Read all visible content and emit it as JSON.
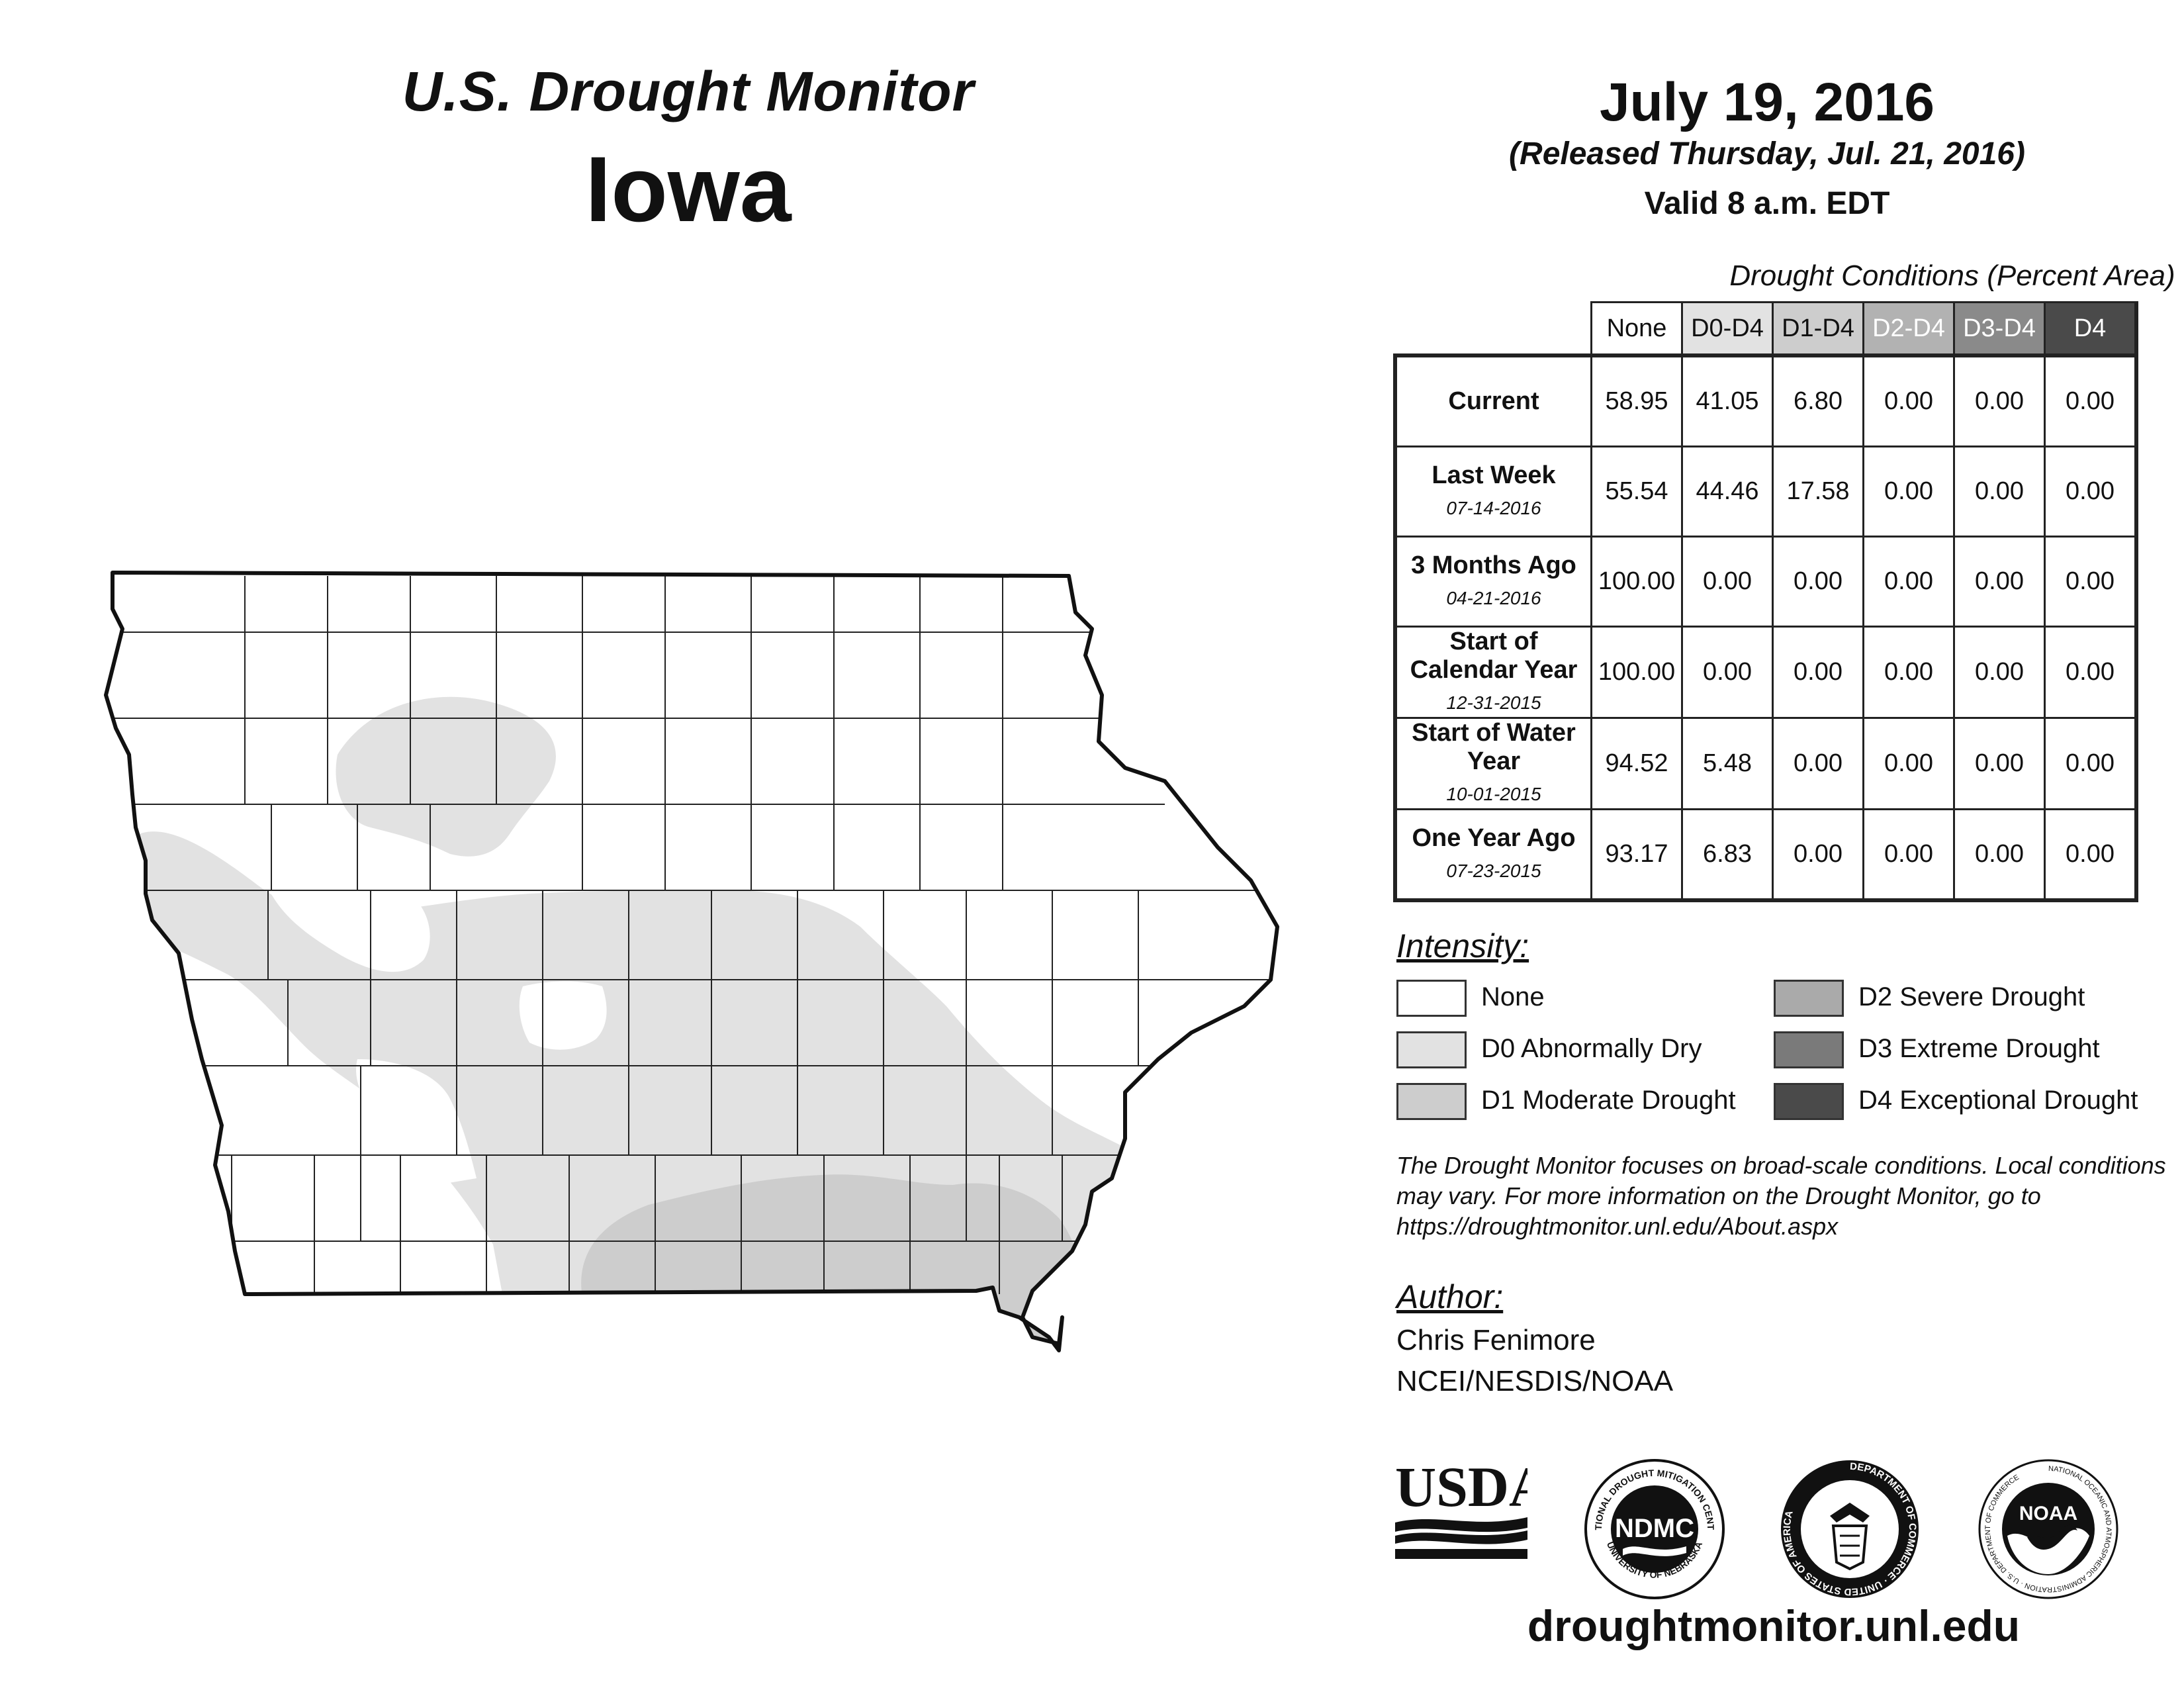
{
  "header": {
    "title": "U.S. Drought Monitor",
    "state": "Iowa",
    "date": "July 19, 2016",
    "released": "(Released Thursday, Jul. 21, 2016)",
    "valid": "Valid 8 a.m. EDT"
  },
  "table": {
    "caption": "Drought Conditions (Percent Area)",
    "columns": [
      "None",
      "D0-D4",
      "D1-D4",
      "D2-D4",
      "D3-D4",
      "D4"
    ],
    "column_colors": [
      "#ffffff",
      "#e2e2e2",
      "#cdcdcd",
      "#b2b2b2",
      "#8a8a8a",
      "#4a4a4a"
    ],
    "rows": [
      {
        "label": "Current",
        "date": "",
        "values": [
          "58.95",
          "41.05",
          "6.80",
          "0.00",
          "0.00",
          "0.00"
        ]
      },
      {
        "label": "Last Week",
        "date": "07-14-2016",
        "values": [
          "55.54",
          "44.46",
          "17.58",
          "0.00",
          "0.00",
          "0.00"
        ]
      },
      {
        "label": "3 Months Ago",
        "date": "04-21-2016",
        "values": [
          "100.00",
          "0.00",
          "0.00",
          "0.00",
          "0.00",
          "0.00"
        ]
      },
      {
        "label": "Start of Calendar Year",
        "date": "12-31-2015",
        "values": [
          "100.00",
          "0.00",
          "0.00",
          "0.00",
          "0.00",
          "0.00"
        ]
      },
      {
        "label": "Start of Water Year",
        "date": "10-01-2015",
        "values": [
          "94.52",
          "5.48",
          "0.00",
          "0.00",
          "0.00",
          "0.00"
        ]
      },
      {
        "label": "One Year Ago",
        "date": "07-23-2015",
        "values": [
          "93.17",
          "6.83",
          "0.00",
          "0.00",
          "0.00",
          "0.00"
        ]
      }
    ]
  },
  "legend": {
    "title": "Intensity:",
    "items": [
      {
        "label": "None",
        "color": "#ffffff"
      },
      {
        "label": "D0 Abnormally Dry",
        "color": "#e2e2e2"
      },
      {
        "label": "D1 Moderate Drought",
        "color": "#cdcdcd"
      },
      {
        "label": "D2 Severe Drought",
        "color": "#aaaaaa"
      },
      {
        "label": "D3 Extreme Drought",
        "color": "#7a7a7a"
      },
      {
        "label": "D4 Exceptional Drought",
        "color": "#4a4a4a"
      }
    ]
  },
  "note": "The Drought Monitor focuses on broad-scale conditions. Local conditions may vary. For more information on the Drought Monitor, go to https://droughtmonitor.unl.edu/About.aspx",
  "author": {
    "title": "Author:",
    "name": "Chris Fenimore",
    "org": "NCEI/NESDIS/NOAA"
  },
  "logos": {
    "usda": "USDA",
    "ndmc": "NDMC",
    "ndmc_ring_top": "NATIONAL DROUGHT MITIGATION CENTER",
    "ndmc_ring_bottom": "UNIVERSITY OF NEBRASKA",
    "doc_ring": "DEPARTMENT OF COMMERCE · UNITED STATES OF AMERICA",
    "noaa": "NOAA",
    "noaa_ring": "NATIONAL OCEANIC AND ATMOSPHERIC ADMINISTRATION · U.S. DEPARTMENT OF COMMERCE"
  },
  "website": "droughtmonitor.unl.edu",
  "map": {
    "d0_color": "#e2e2e2",
    "d1_color": "#cdcdcd",
    "boundary_color": "#111111",
    "county_line_color": "#222222"
  }
}
